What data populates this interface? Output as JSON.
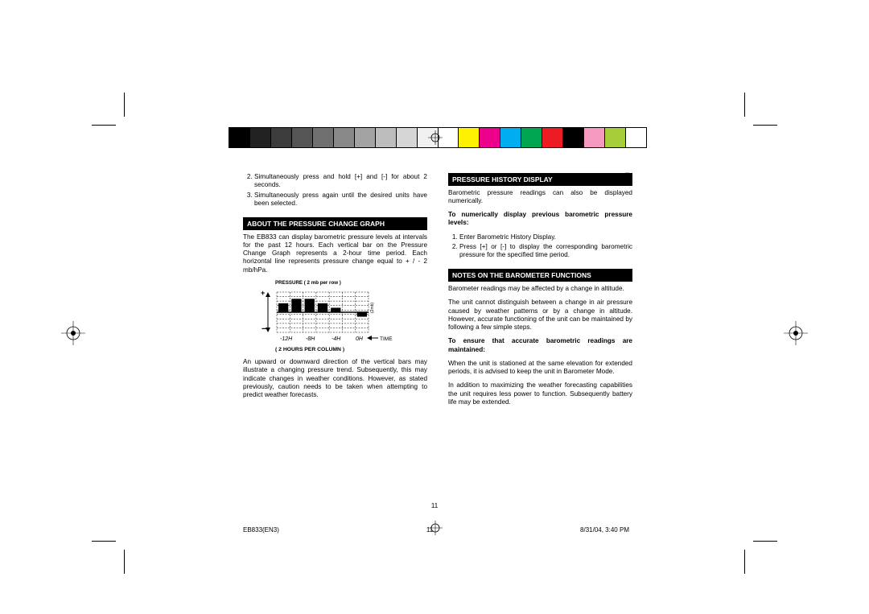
{
  "colorbar": [
    "#000000",
    "#222222",
    "#3c3c3c",
    "#555555",
    "#707070",
    "#898989",
    "#a3a3a3",
    "#bdbdbd",
    "#d6d6d6",
    "#f0f0f0",
    "#ffffff",
    "#fff200",
    "#ec008c",
    "#00aeef",
    "#00a651",
    "#ed1c24",
    "#000000",
    "#f49ac1",
    "#a6ce39",
    "#ffffff"
  ],
  "lang_tab": "EN",
  "left": {
    "intro_items": [
      "Simultaneously press and hold [+] and [-] for about 2 seconds.",
      "Simultaneously press again until the desired units have been selected."
    ],
    "intro_start": "2",
    "head1": "ABOUT THE PRESSURE CHANGE GRAPH",
    "p1": "The EB833 can display barometric pressure levels at intervals for the past 12 hours. Each vertical bar on the Pressure Change Graph represents a 2-hour time period. Each horizontal line represents pressure change equal to + / - 2 mb/hPa.",
    "graph_top": "PRESSURE ( 2 mb per row )",
    "graph_time": "TIME",
    "graph_xlabels": [
      "-12H",
      "-8H",
      "-4H",
      "0H"
    ],
    "graph_bot": "( 2 HOURS PER COLUMN )",
    "p2": "An upward or downward direction of the vertical bars may illustrate a changing pressure trend. Subsequently, this may indicate changes in weather conditions. However, as stated previously, caution needs to be taken when attempting to predict weather forecasts."
  },
  "right": {
    "head1": "PRESSURE HISTORY DISPLAY",
    "p1": "Barometric pressure readings can also be displayed numerically.",
    "bold1": "To numerically display previous barometric pressure levels:",
    "items1": [
      "Enter Barometric History Display.",
      "Press [+] or [-] to display the corresponding barometric pressure for the specified time period."
    ],
    "head2": "NOTES ON THE BAROMETER FUNCTIONS",
    "p2": "Barometer readings may be affected by a change in altitude.",
    "p3": "The unit cannot distinguish between a change in air pressure caused by weather patterns or by a change in altitude. However, accurate functioning of the unit can be maintained by following a few simple steps.",
    "bold2": "To ensure that accurate barometric readings are maintained:",
    "p4": "When the unit is stationed at the same elevation for extended periods, it is advised to keep the unit in Barometer Mode.",
    "p5": "In addition to maximizing the weather forecasting capabilities the unit requires less power to function. Subsequently battery life may be extended."
  },
  "pagenum": "11",
  "footer": {
    "doc": "EB833(EN3)",
    "page": "11",
    "date": "8/31/04, 3:40 PM"
  }
}
